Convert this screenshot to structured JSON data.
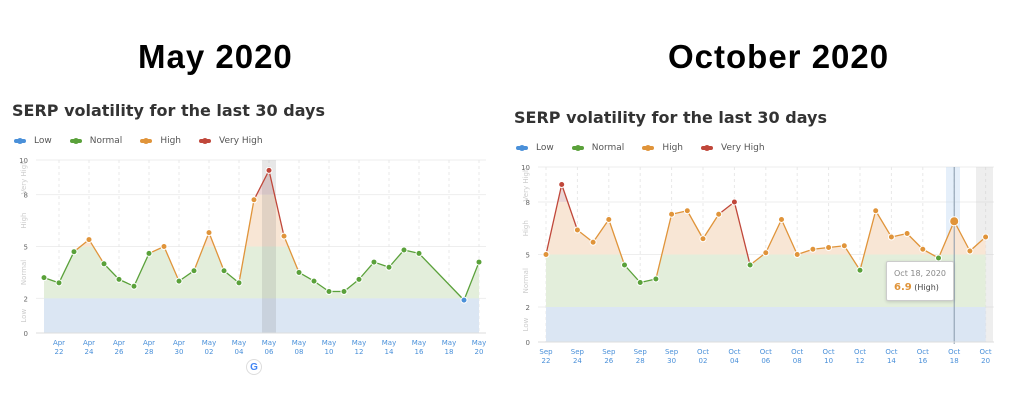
{
  "headings": {
    "left": "May  2020",
    "right": "October 2020"
  },
  "colors": {
    "low": "#4a90d9",
    "normal": "#5aa13a",
    "high": "#e0943a",
    "very_high": "#c0473a",
    "band_low": "#dbe6f3",
    "band_normal": "#e3eedb",
    "band_high": "#f8e6d5",
    "band_very_high": "#ebd6d6",
    "axis_text": "#4a90d9"
  },
  "panels": [
    {
      "title": "SERP volatility for the last 30 days",
      "legend": [
        {
          "label": "Low",
          "color": "#4a90d9"
        },
        {
          "label": "Normal",
          "color": "#5aa13a"
        },
        {
          "label": "High",
          "color": "#e0943a"
        },
        {
          "label": "Very High",
          "color": "#c0473a"
        }
      ]
    },
    {
      "title": "SERP volatility for the last 30 days",
      "legend": [
        {
          "label": "Low",
          "color": "#4a90d9"
        },
        {
          "label": "Normal",
          "color": "#5aa13a"
        },
        {
          "label": "High",
          "color": "#e0943a"
        },
        {
          "label": "Very High",
          "color": "#c0473a"
        }
      ],
      "tooltip": {
        "date": "Oct 18, 2020",
        "value": "6.9",
        "level": "(High)"
      }
    }
  ],
  "chart_data": [
    {
      "type": "area",
      "title": "SERP volatility for the last 30 days",
      "period": "May 2020",
      "xlabel": "",
      "ylabel": "",
      "ylim": [
        0,
        10
      ],
      "y_ticks": [
        0,
        2,
        5,
        8,
        10
      ],
      "y_bands": [
        {
          "label": "Low",
          "from": 0,
          "to": 2
        },
        {
          "label": "Normal",
          "from": 2,
          "to": 5
        },
        {
          "label": "High",
          "from": 5,
          "to": 8
        },
        {
          "label": "Very High",
          "from": 8,
          "to": 10
        }
      ],
      "x_tick_labels": [
        "Apr 22",
        "Apr 24",
        "Apr 26",
        "Apr 28",
        "Apr 30",
        "May 02",
        "May 04",
        "May 06",
        "May 08",
        "May 10",
        "May 12",
        "May 14",
        "May 16",
        "May 18",
        "May 20"
      ],
      "highlighted_date": "May 06",
      "annotation": "Google update marker at May 05-06",
      "x": [
        "Apr 21",
        "Apr 22",
        "Apr 23",
        "Apr 24",
        "Apr 25",
        "Apr 26",
        "Apr 27",
        "Apr 28",
        "Apr 29",
        "Apr 30",
        "May 01",
        "May 02",
        "May 03",
        "May 04",
        "May 05",
        "May 06",
        "May 07",
        "May 08",
        "May 09",
        "May 10",
        "May 11",
        "May 12",
        "May 13",
        "May 14",
        "May 15",
        "May 16",
        "May 19",
        "May 20"
      ],
      "day_index": [
        0,
        1,
        2,
        3,
        4,
        5,
        6,
        7,
        8,
        9,
        10,
        11,
        12,
        13,
        14,
        15,
        16,
        17,
        18,
        19,
        20,
        21,
        22,
        23,
        24,
        25,
        28,
        29
      ],
      "values": [
        3.2,
        2.9,
        4.7,
        5.4,
        4.0,
        3.1,
        2.7,
        4.6,
        5.0,
        3.0,
        3.6,
        5.8,
        3.6,
        2.9,
        7.7,
        9.4,
        5.6,
        3.5,
        3.0,
        2.4,
        2.4,
        3.1,
        4.1,
        3.8,
        4.8,
        4.6,
        1.9,
        4.1
      ],
      "legend": [
        "Low",
        "Normal",
        "High",
        "Very High"
      ],
      "legend_position": "top-left",
      "grid": true
    },
    {
      "type": "area",
      "title": "SERP volatility for the last 30 days",
      "period": "October 2020",
      "xlabel": "",
      "ylabel": "",
      "ylim": [
        0,
        10
      ],
      "y_ticks": [
        0,
        2,
        5,
        8,
        10
      ],
      "y_bands": [
        {
          "label": "Low",
          "from": 0,
          "to": 2
        },
        {
          "label": "Normal",
          "from": 2,
          "to": 5
        },
        {
          "label": "High",
          "from": 5,
          "to": 8
        },
        {
          "label": "Very High",
          "from": 8,
          "to": 10
        }
      ],
      "x_tick_labels": [
        "Sep 22",
        "Sep 24",
        "Sep 26",
        "Sep 28",
        "Sep 30",
        "Oct 02",
        "Oct 04",
        "Oct 06",
        "Oct 08",
        "Oct 10",
        "Oct 12",
        "Oct 14",
        "Oct 16",
        "Oct 18",
        "Oct 20"
      ],
      "highlighted_date": "Oct 18",
      "tooltip": {
        "date": "Oct 18, 2020",
        "value": 6.9,
        "level": "High"
      },
      "x": [
        "Sep 22",
        "Sep 23",
        "Sep 24",
        "Sep 25",
        "Sep 26",
        "Sep 27",
        "Sep 28",
        "Sep 29",
        "Sep 30",
        "Oct 01",
        "Oct 02",
        "Oct 03",
        "Oct 04",
        "Oct 05",
        "Oct 06",
        "Oct 07",
        "Oct 08",
        "Oct 09",
        "Oct 10",
        "Oct 11",
        "Oct 12",
        "Oct 13",
        "Oct 14",
        "Oct 15",
        "Oct 16",
        "Oct 17",
        "Oct 18",
        "Oct 19",
        "Oct 20"
      ],
      "day_index": [
        0,
        1,
        2,
        3,
        4,
        5,
        6,
        7,
        8,
        9,
        10,
        11,
        12,
        13,
        14,
        15,
        16,
        17,
        18,
        19,
        20,
        21,
        22,
        23,
        24,
        25,
        26,
        27,
        28
      ],
      "values": [
        5.0,
        9.0,
        6.4,
        5.7,
        7.0,
        4.4,
        3.4,
        3.6,
        7.3,
        7.5,
        5.9,
        7.3,
        8.0,
        4.4,
        5.1,
        7.0,
        5.0,
        5.3,
        5.4,
        5.5,
        4.1,
        7.5,
        6.0,
        6.2,
        5.3,
        4.8,
        6.9,
        5.2,
        6.0
      ],
      "legend": [
        "Low",
        "Normal",
        "High",
        "Very High"
      ],
      "legend_position": "top-left",
      "grid": true
    }
  ]
}
